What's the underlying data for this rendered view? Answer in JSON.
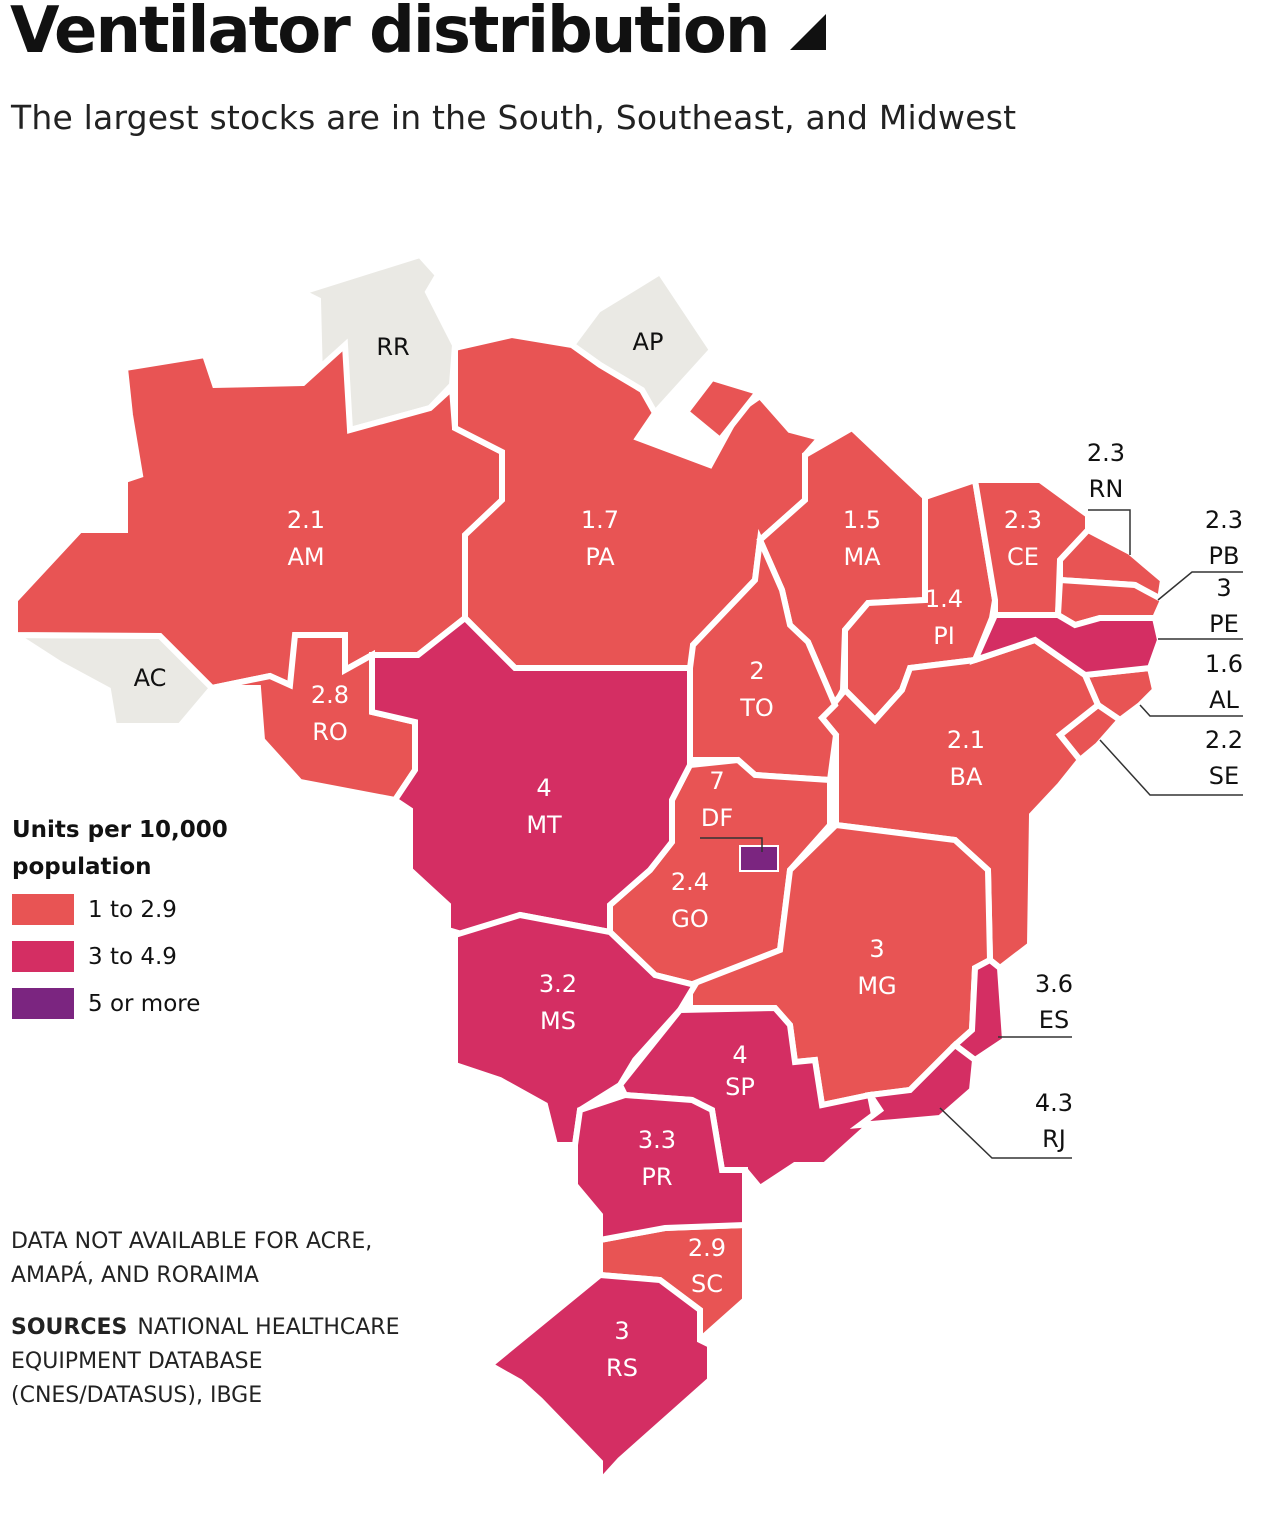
{
  "title": "Ventilator distribution",
  "subtitle": "The largest stocks are in the South, Southeast, and Midwest",
  "legend": {
    "title": "Units per 10,000 population",
    "items": [
      {
        "label": "1 to 2.9",
        "color": "#e85454"
      },
      {
        "label": "3 to 4.9",
        "color": "#d42e63"
      },
      {
        "label": "5 or more",
        "color": "#7b2580"
      }
    ]
  },
  "colors": {
    "no_data": "#eae9e4",
    "low": "#e85454",
    "mid": "#d42e63",
    "high": "#7b2580"
  },
  "footnote": "DATA NOT AVAILABLE FOR ACRE, AMAPÁ, AND RORAIMA",
  "sources": {
    "label": "SOURCES",
    "text": "NATIONAL HEALTHCARE EQUIPMENT DATABASE (CNES/DATASUS), IBGE"
  },
  "regions": {
    "RR": {
      "abbr": "RR",
      "value": ""
    },
    "AP": {
      "abbr": "AP",
      "value": ""
    },
    "AC": {
      "abbr": "AC",
      "value": ""
    },
    "AM": {
      "abbr": "AM",
      "value": "2.1"
    },
    "PA": {
      "abbr": "PA",
      "value": "1.7"
    },
    "MA": {
      "abbr": "MA",
      "value": "1.5"
    },
    "CE": {
      "abbr": "CE",
      "value": "2.3"
    },
    "PI": {
      "abbr": "PI",
      "value": "1.4"
    },
    "RN": {
      "abbr": "RN",
      "value": "2.3"
    },
    "PB": {
      "abbr": "PB",
      "value": "2.3"
    },
    "PE": {
      "abbr": "PE",
      "value": "3"
    },
    "AL": {
      "abbr": "AL",
      "value": "1.6"
    },
    "SE": {
      "abbr": "SE",
      "value": "2.2"
    },
    "RO": {
      "abbr": "RO",
      "value": "2.8"
    },
    "TO": {
      "abbr": "TO",
      "value": "2"
    },
    "BA": {
      "abbr": "BA",
      "value": "2.1"
    },
    "MT": {
      "abbr": "MT",
      "value": "4"
    },
    "DF": {
      "abbr": "DF",
      "value": "7"
    },
    "GO": {
      "abbr": "GO",
      "value": "2.4"
    },
    "MG": {
      "abbr": "MG",
      "value": "3"
    },
    "ES": {
      "abbr": "ES",
      "value": "3.6"
    },
    "MS": {
      "abbr": "MS",
      "value": "3.2"
    },
    "SP": {
      "abbr": "SP",
      "value": "4"
    },
    "RJ": {
      "abbr": "RJ",
      "value": "4.3"
    },
    "PR": {
      "abbr": "PR",
      "value": "3.3"
    },
    "SC": {
      "abbr": "SC",
      "value": "2.9"
    },
    "RS": {
      "abbr": "RS",
      "value": "3"
    }
  }
}
